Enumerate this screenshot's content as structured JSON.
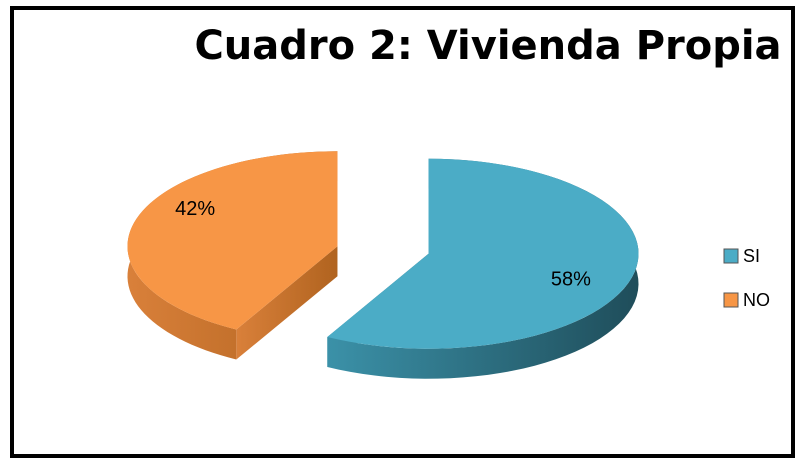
{
  "chart_data": {
    "type": "pie",
    "title": "Cuadro 2: Vivienda Propia",
    "categories": [
      "SI",
      "NO"
    ],
    "values": [
      58,
      42
    ],
    "value_labels": [
      "58%",
      "42%"
    ],
    "colors": [
      "#4bacc6",
      "#f79646"
    ],
    "legend": "right",
    "exploded": true,
    "three_d": true
  }
}
